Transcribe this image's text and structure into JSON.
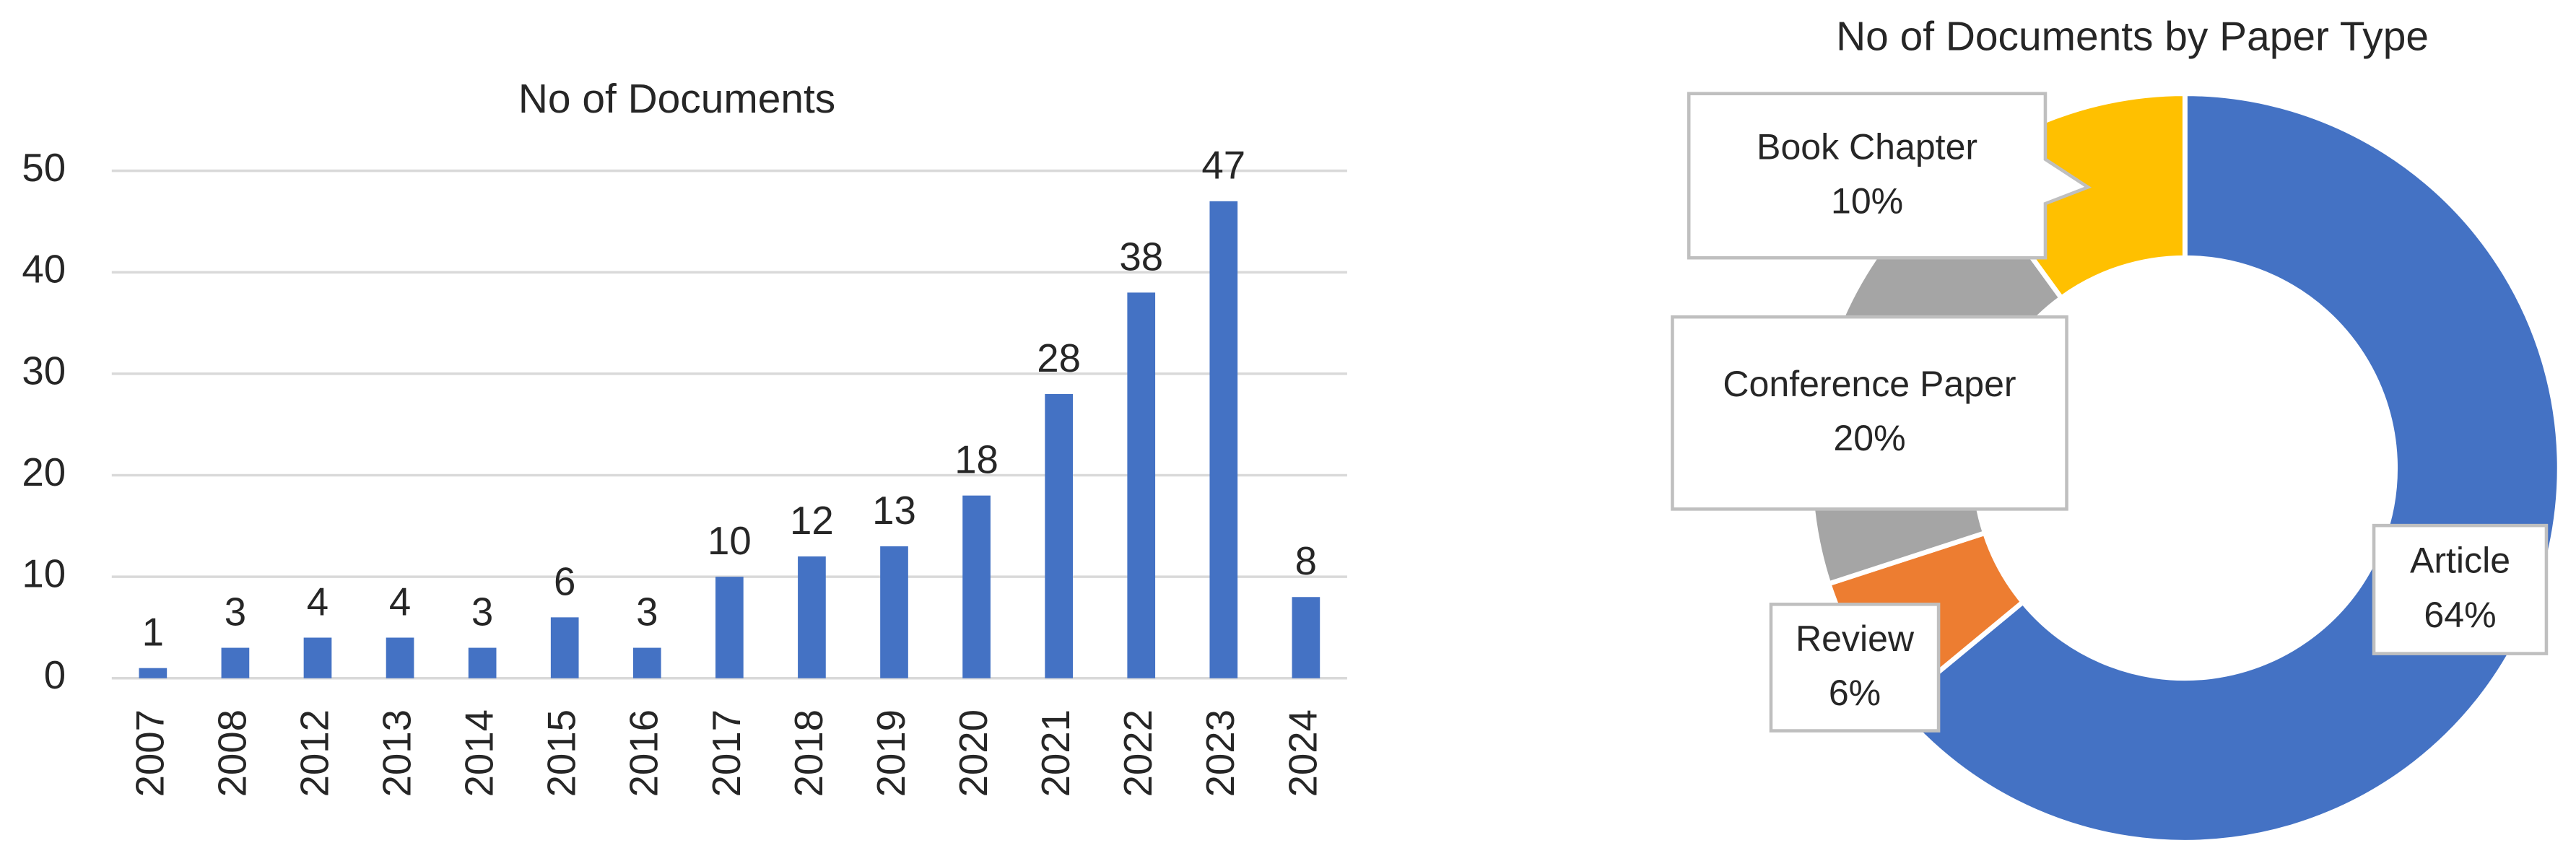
{
  "chart_data": [
    {
      "type": "bar",
      "title": "No of Documents",
      "categories": [
        "2007",
        "2008",
        "2012",
        "2013",
        "2014",
        "2015",
        "2016",
        "2017",
        "2018",
        "2019",
        "2020",
        "2021",
        "2022",
        "2023",
        "2024"
      ],
      "values": [
        1,
        3,
        4,
        4,
        3,
        6,
        3,
        10,
        12,
        13,
        18,
        28,
        38,
        47,
        8
      ],
      "color": "#4472c4",
      "ylim": [
        0,
        50
      ],
      "yticks": [
        0,
        10,
        20,
        30,
        40,
        50
      ],
      "grid": true
    },
    {
      "type": "doughnut",
      "title": "No of Documents by Paper Type",
      "categories": [
        "Article",
        "Review",
        "Conference Paper",
        "Book Chapter"
      ],
      "values": [
        64,
        6,
        20,
        10
      ],
      "value_labels": [
        "64%",
        "6%",
        "20%",
        "10%"
      ],
      "colors": [
        "#4472c4",
        "#ed7d31",
        "#a5a5a5",
        "#ffc000"
      ]
    }
  ]
}
